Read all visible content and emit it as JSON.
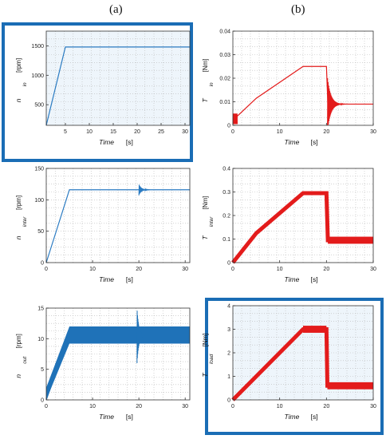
{
  "column_labels": [
    "(a)",
    "(b)"
  ],
  "highlight_color": "#1a6db5",
  "chart_data": [
    {
      "id": "n_in",
      "type": "line",
      "color": "#2b7bc2",
      "x_label": "Time",
      "x_unit": "[s]",
      "y_label_main": "n",
      "y_label_sub": "in",
      "y_unit": "[rpm]",
      "xlim": [
        1,
        31
      ],
      "ylim": [
        150,
        1750
      ],
      "xticks": [
        5,
        10,
        15,
        20,
        25,
        30
      ],
      "yticks": [
        500,
        1000,
        1500
      ],
      "x": [
        1,
        5,
        31
      ],
      "y": [
        150,
        1480,
        1480
      ],
      "highlight": true
    },
    {
      "id": "T_in",
      "type": "line",
      "color": "#e31b1b",
      "x_label": "Time",
      "x_unit": "[s]",
      "y_label_main": "T",
      "y_label_sub": "in",
      "y_unit": "[Nm]",
      "xlim": [
        0,
        30
      ],
      "ylim": [
        0,
        0.04
      ],
      "xticks": [
        0,
        10,
        20,
        30
      ],
      "yticks": [
        0,
        0.01,
        0.02,
        0.03,
        0.04
      ],
      "x": [
        0,
        0.5,
        1,
        5,
        15,
        20,
        20.3,
        21,
        22,
        23,
        24,
        30
      ],
      "y": [
        0.001,
        0.003,
        0.004,
        0.0115,
        0.025,
        0.025,
        0.009,
        0.009,
        0.009,
        0.009,
        0.009,
        0.009
      ],
      "highlight": false
    },
    {
      "id": "n_inter",
      "type": "line",
      "color": "#2b7bc2",
      "x_label": "Time",
      "x_unit": "[s]",
      "y_label_main": "n",
      "y_label_sub": "inter",
      "y_unit": "[rpm]",
      "xlim": [
        0,
        31
      ],
      "ylim": [
        0,
        150
      ],
      "xticks": [
        0,
        10,
        20,
        30
      ],
      "yticks": [
        0,
        50,
        100,
        150
      ],
      "x": [
        0,
        5,
        20,
        31
      ],
      "y": [
        0,
        116,
        116,
        116
      ],
      "highlight": false
    },
    {
      "id": "T_inter",
      "type": "line",
      "color": "#e31b1b",
      "x_label": "Time",
      "x_unit": "[s]",
      "y_label_main": "T",
      "y_label_sub": "inter",
      "y_unit": "[Nm]",
      "xlim": [
        0,
        30
      ],
      "ylim": [
        0,
        0.4
      ],
      "xticks": [
        0,
        10,
        20,
        30
      ],
      "yticks": [
        0,
        0.1,
        0.2,
        0.3,
        0.4
      ],
      "x": [
        0,
        5,
        15,
        20,
        20.3,
        30
      ],
      "y": [
        0,
        0.125,
        0.295,
        0.295,
        0.095,
        0.095
      ],
      "highlight": false
    },
    {
      "id": "n_out",
      "type": "line",
      "color": "#1f72b8",
      "x_label": "Time",
      "x_unit": "[s]",
      "y_label_main": "n",
      "y_label_sub": "out",
      "y_unit": "[rpm]",
      "xlim": [
        0,
        31
      ],
      "ylim": [
        0,
        15
      ],
      "xticks": [
        0,
        10,
        20,
        30
      ],
      "yticks": [
        0,
        5,
        10,
        15
      ],
      "x": [
        0,
        5,
        20,
        31
      ],
      "y": [
        0,
        10.5,
        10.5,
        10.5
      ],
      "highlight": false
    },
    {
      "id": "T_load",
      "type": "line",
      "color": "#e31b1b",
      "x_label": "Time",
      "x_unit": "[s]",
      "y_label_main": "T",
      "y_label_sub": "load",
      "y_unit": "[Nm]",
      "xlim": [
        0,
        30
      ],
      "ylim": [
        0,
        4
      ],
      "xticks": [
        0,
        10,
        20,
        30
      ],
      "yticks": [
        0,
        1,
        2,
        3,
        4
      ],
      "x": [
        0,
        15,
        20,
        20.2,
        30
      ],
      "y": [
        0,
        3.0,
        3.0,
        0.6,
        0.6
      ],
      "highlight": true
    }
  ]
}
